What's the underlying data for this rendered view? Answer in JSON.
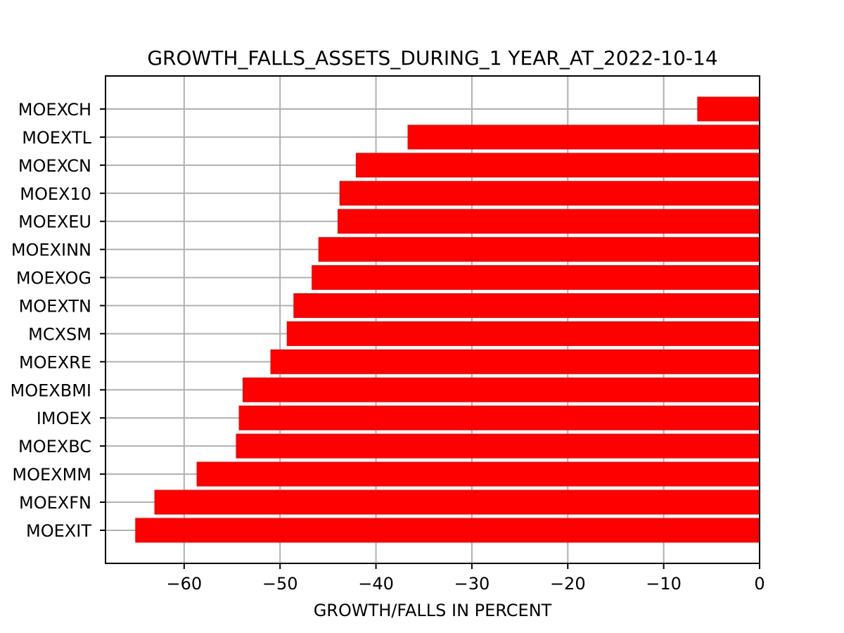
{
  "chart_data": {
    "type": "bar",
    "orientation": "horizontal",
    "title": "GROWTH_FALLS_ASSETS_DURING_1 YEAR_AT_2022-10-14",
    "xlabel": "GROWTH/FALLS IN PERCENT",
    "ylabel": "",
    "categories": [
      "MOEXCH",
      "MOEXTL",
      "MOEXCN",
      "MOEX10",
      "MOEXEU",
      "MOEXINN",
      "MOEXOG",
      "MOEXTN",
      "MCXSM",
      "MOEXRE",
      "MOEXBMI",
      "IMOEX",
      "MOEXBC",
      "MOEXMM",
      "MOEXFN",
      "MOEXIT"
    ],
    "values": [
      -6.5,
      -36.7,
      -42.1,
      -43.8,
      -44.0,
      -46.0,
      -46.7,
      -48.6,
      -49.3,
      -51.0,
      -53.9,
      -54.3,
      -54.6,
      -58.7,
      -63.1,
      -65.1
    ],
    "xlim": [
      -68.2,
      0
    ],
    "xticks": [
      -60,
      -50,
      -40,
      -30,
      -20,
      -10,
      0
    ],
    "xtick_labels": [
      "−60",
      "−50",
      "−40",
      "−30",
      "−20",
      "−10",
      "0"
    ],
    "grid": true,
    "bar_color": "#ff0000"
  }
}
